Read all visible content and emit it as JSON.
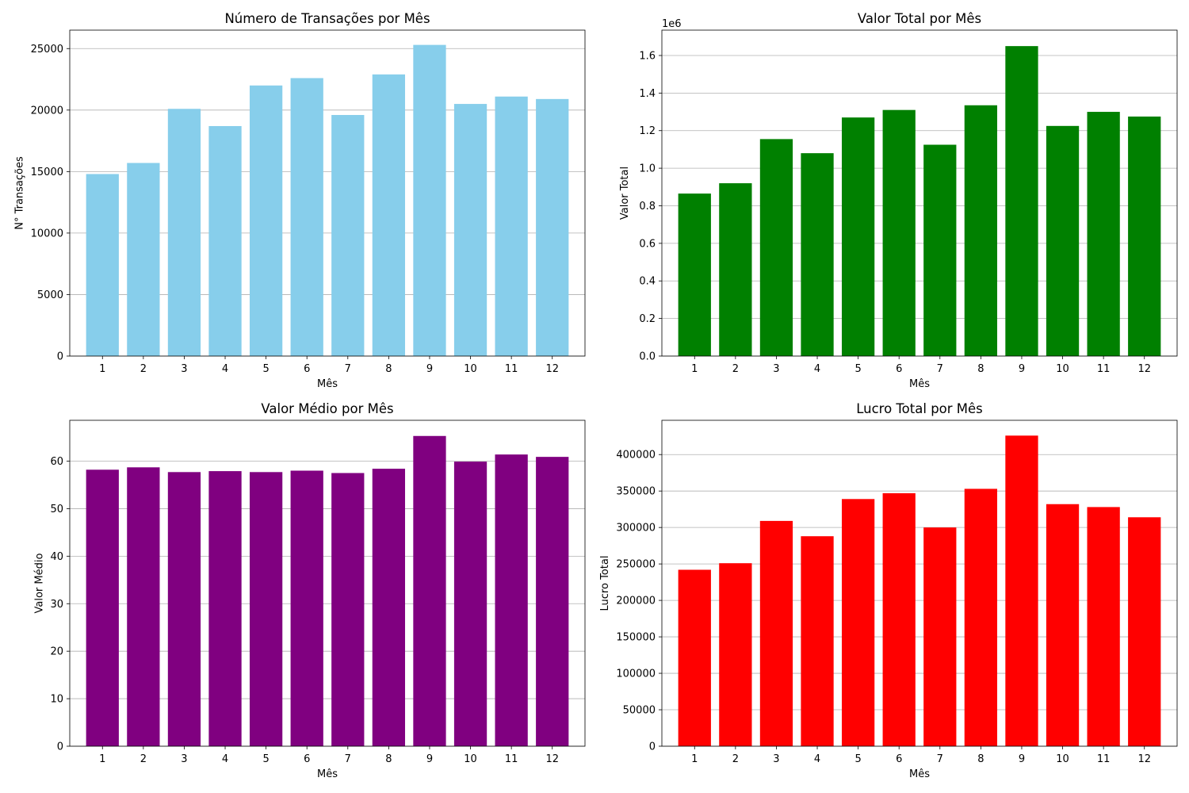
{
  "figure": {
    "background": "#ffffff"
  },
  "chart_data": [
    {
      "type": "bar",
      "title": "Número de Transações por Mês",
      "xlabel": "Mês",
      "ylabel": "N° Transações",
      "categories": [
        "1",
        "2",
        "3",
        "4",
        "5",
        "6",
        "7",
        "8",
        "9",
        "10",
        "11",
        "12"
      ],
      "values": [
        14800,
        15700,
        20100,
        18700,
        22000,
        22600,
        19600,
        22900,
        25300,
        20500,
        21100,
        20900
      ],
      "ylim": [
        0,
        26500
      ],
      "yticks": [
        0,
        5000,
        10000,
        15000,
        20000,
        25000
      ],
      "ytick_labels": [
        "0",
        "5000",
        "10000",
        "15000",
        "20000",
        "25000"
      ],
      "offset_label": "",
      "grid": "y",
      "color": "#87ceeb"
    },
    {
      "type": "bar",
      "title": "Valor Total por Mês",
      "xlabel": "Mês",
      "ylabel": "Valor Total",
      "categories": [
        "1",
        "2",
        "3",
        "4",
        "5",
        "6",
        "7",
        "8",
        "9",
        "10",
        "11",
        "12"
      ],
      "values": [
        865000,
        920000,
        1155000,
        1080000,
        1270000,
        1310000,
        1125000,
        1335000,
        1650000,
        1225000,
        1300000,
        1275000
      ],
      "ylim": [
        0,
        1735000
      ],
      "yticks": [
        0,
        200000,
        400000,
        600000,
        800000,
        1000000,
        1200000,
        1400000,
        1600000
      ],
      "ytick_labels": [
        "0.0",
        "0.2",
        "0.4",
        "0.6",
        "0.8",
        "1.0",
        "1.2",
        "1.4",
        "1.6"
      ],
      "offset_label": "1e6",
      "grid": "y",
      "color": "#008000"
    },
    {
      "type": "bar",
      "title": "Valor Médio por Mês",
      "xlabel": "Mês",
      "ylabel": "Valor Médio",
      "categories": [
        "1",
        "2",
        "3",
        "4",
        "5",
        "6",
        "7",
        "8",
        "9",
        "10",
        "11",
        "12"
      ],
      "values": [
        58.2,
        58.7,
        57.7,
        57.9,
        57.7,
        58.0,
        57.5,
        58.4,
        65.3,
        59.9,
        61.4,
        60.9
      ],
      "ylim": [
        0,
        68.6
      ],
      "yticks": [
        0,
        10,
        20,
        30,
        40,
        50,
        60
      ],
      "ytick_labels": [
        "0",
        "10",
        "20",
        "30",
        "40",
        "50",
        "60"
      ],
      "offset_label": "",
      "grid": "y",
      "color": "#800080"
    },
    {
      "type": "bar",
      "title": "Lucro Total por Mês",
      "xlabel": "Mês",
      "ylabel": "Lucro Total",
      "categories": [
        "1",
        "2",
        "3",
        "4",
        "5",
        "6",
        "7",
        "8",
        "9",
        "10",
        "11",
        "12"
      ],
      "values": [
        242000,
        251000,
        309000,
        288000,
        339000,
        347000,
        300000,
        353000,
        426000,
        332000,
        328000,
        314000
      ],
      "ylim": [
        0,
        447000
      ],
      "yticks": [
        0,
        50000,
        100000,
        150000,
        200000,
        250000,
        300000,
        350000,
        400000
      ],
      "ytick_labels": [
        "0",
        "50000",
        "100000",
        "150000",
        "200000",
        "250000",
        "300000",
        "350000",
        "400000"
      ],
      "offset_label": "",
      "grid": "y",
      "color": "#ff0000"
    }
  ]
}
